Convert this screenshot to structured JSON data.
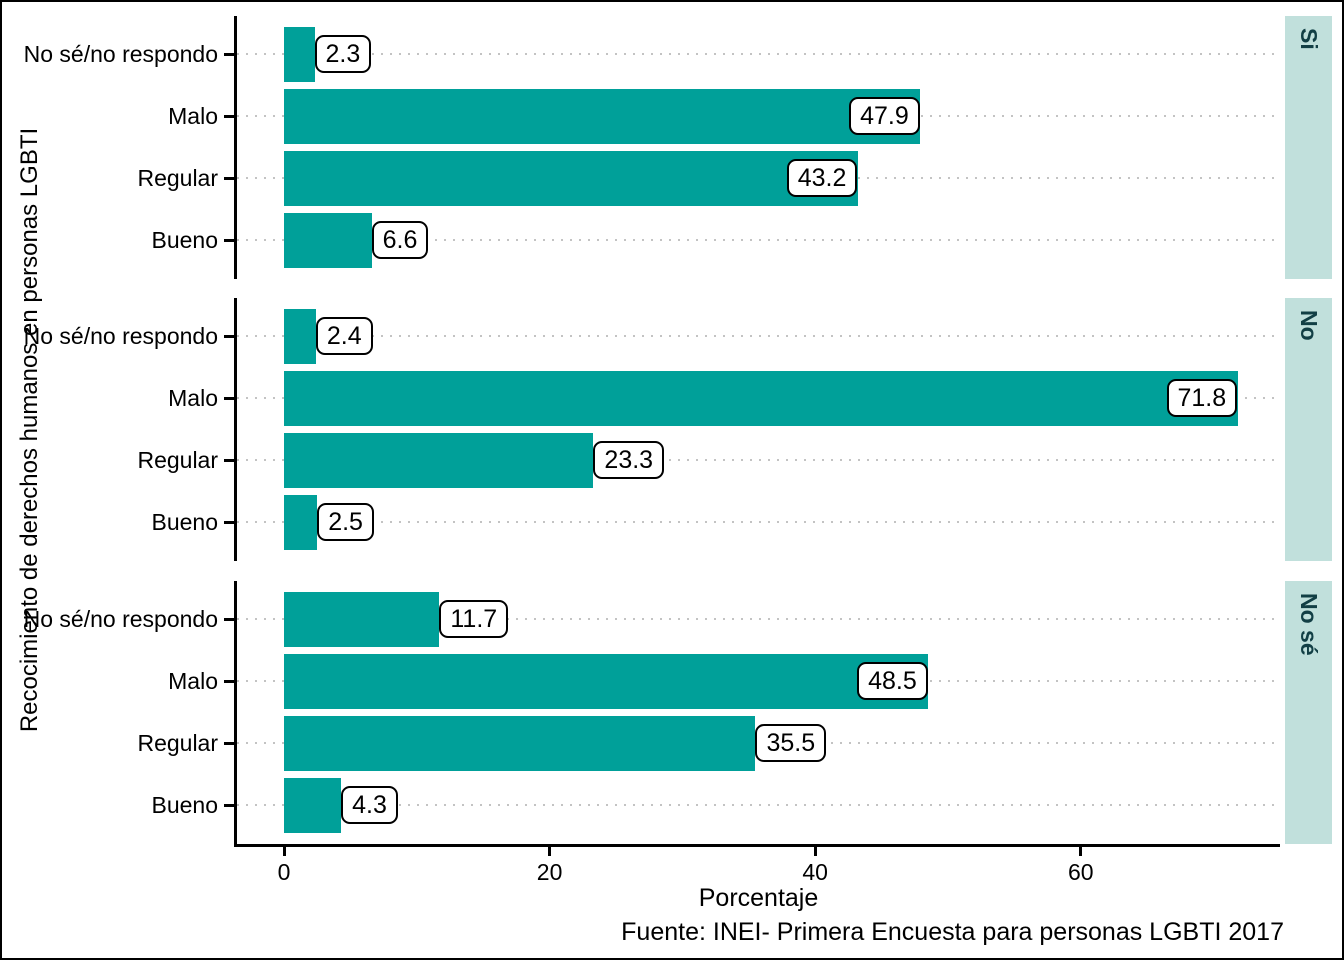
{
  "figure": {
    "ylabel": "Recocimiento de derechos humanos en personas LGBTI",
    "xlabel": "Porcentaje",
    "caption": "Fuente: INEI- Primera Encuesta para personas LGBTI 2017"
  },
  "chart_data": {
    "type": "bar",
    "orientation": "horizontal",
    "title": "",
    "xlabel": "Porcentaje",
    "ylabel": "Recocimiento de derechos humanos en personas LGBTI",
    "caption": "Fuente: INEI- Primera Encuesta para personas LGBTI 2017",
    "categories": [
      "No sé/no respondo",
      "Malo",
      "Regular",
      "Bueno"
    ],
    "facets": [
      {
        "label": "Si",
        "values": [
          2.3,
          47.9,
          43.2,
          6.6
        ]
      },
      {
        "label": "No",
        "values": [
          2.4,
          71.8,
          23.3,
          2.5
        ]
      },
      {
        "label": "No sé",
        "values": [
          11.7,
          48.5,
          35.5,
          4.3
        ]
      }
    ],
    "value_labels": [
      [
        "2.3",
        "47.9",
        "43.2",
        "6.6"
      ],
      [
        "2.4",
        "71.8",
        "23.3",
        "2.5"
      ],
      [
        "11.7",
        "48.5",
        "35.5",
        "4.3"
      ]
    ],
    "x_ticks": [
      "0",
      "20",
      "40",
      "60"
    ],
    "x_tick_values": [
      0,
      20,
      40,
      60
    ],
    "xlim": [
      0,
      75
    ],
    "grid": "horizontal dotted per category",
    "legend": "none",
    "colors": {
      "bar": "#00A099",
      "strip_background": "#C1E0DC",
      "strip_text": "#123F45",
      "gridline": "#C3C3C3",
      "axis": "#000000",
      "label_box_background": "#FFFFFF",
      "label_box_border": "#000000"
    }
  }
}
